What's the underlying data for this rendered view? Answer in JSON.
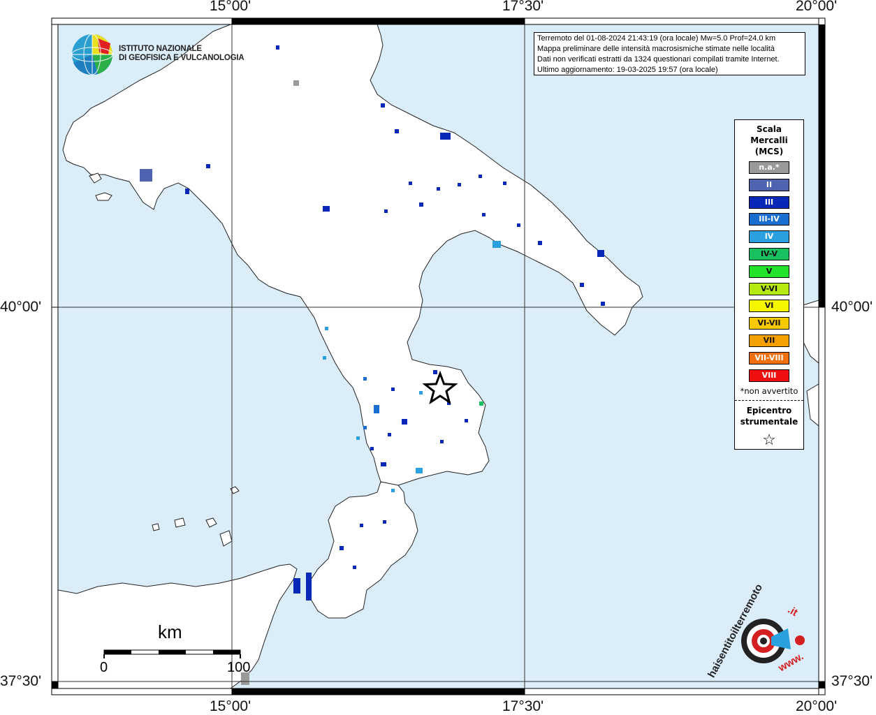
{
  "axes": {
    "top": [
      "15°00'",
      "17°30'",
      "20°00'"
    ],
    "bottom": [
      "15°00'",
      "17°30'",
      "20°00'"
    ],
    "left": [
      "40°00'",
      "37°30'"
    ],
    "right": [
      "40°00'",
      "37°30'"
    ]
  },
  "institute": {
    "name_line1": "ISTITUTO NAZIONALE",
    "name_line2": "DI GEOFISICA E VULCANOLOGIA"
  },
  "event_info": {
    "line1": "Terremoto del 01-08-2024 21:43:19 (ora locale) Mw=5.0 Prof=24.0 km",
    "line2": "Mappa preliminare delle intensità macrosismiche stimate nelle località",
    "line3": "Dati non verificati estratti da 1324 questionari compilati tramite Internet.",
    "line4": "Ultimo aggiornamento: 19-03-2025 19:57 (ora locale)"
  },
  "legend": {
    "title_line1": "Scala",
    "title_line2": "Mercalli",
    "title_line3": "(MCS)",
    "items": [
      {
        "label": "n.a.*",
        "color": "#9a9a9a"
      },
      {
        "label": "II",
        "color": "#4f64b0"
      },
      {
        "label": "III",
        "color": "#0a28b8"
      },
      {
        "label": "III-IV",
        "color": "#1a6ed0"
      },
      {
        "label": "IV",
        "color": "#2aa0e0"
      },
      {
        "label": "IV-V",
        "color": "#18c060"
      },
      {
        "label": "V",
        "color": "#22e22a"
      },
      {
        "label": "V-VI",
        "color": "#b4ea12"
      },
      {
        "label": "VI",
        "color": "#f5f500"
      },
      {
        "label": "VI-VII",
        "color": "#f5c800"
      },
      {
        "label": "VII",
        "color": "#f5a000"
      },
      {
        "label": "VII-VIII",
        "color": "#f07010"
      },
      {
        "label": "VIII",
        "color": "#f01010"
      }
    ],
    "note": "*non avvertito",
    "epicenter_line1": "Epicentro",
    "epicenter_line2": "strumentale",
    "star_symbol": "☆"
  },
  "scale_bar": {
    "unit": "km",
    "start": "0",
    "end": "100"
  },
  "watermark": {
    "text_main": "haisentitoilterremoto",
    "text_tld": ".it",
    "text_www": "www."
  },
  "colors": {
    "sea": "#dcedfa",
    "land": "#ffffff",
    "grid": "#333333"
  }
}
